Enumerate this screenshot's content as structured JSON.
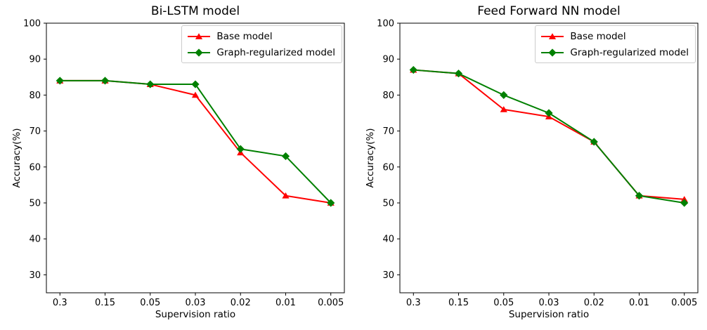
{
  "figure": {
    "background": "#ffffff",
    "spine_color": "#000000",
    "text_color": "#000000"
  },
  "chart_data": [
    {
      "type": "line",
      "title": "Bi-LSTM model",
      "xlabel": "Supervision ratio",
      "ylabel": "Accuracy(%)",
      "categories": [
        "0.3",
        "0.15",
        "0.05",
        "0.03",
        "0.02",
        "0.01",
        "0.005"
      ],
      "yticks": [
        30,
        40,
        50,
        60,
        70,
        80,
        90,
        100
      ],
      "ylim": [
        25,
        100
      ],
      "grid": false,
      "legend_position": "upper right",
      "series": [
        {
          "name": "Base model",
          "color": "#ff0000",
          "marker": "triangle",
          "values": [
            84,
            84,
            83,
            80,
            64,
            52,
            50
          ]
        },
        {
          "name": "Graph-regularized model",
          "color": "#008000",
          "marker": "diamond",
          "values": [
            84,
            84,
            83,
            83,
            65,
            63,
            50
          ]
        }
      ]
    },
    {
      "type": "line",
      "title": "Feed Forward NN model",
      "xlabel": "Supervision ratio",
      "ylabel": "Accuracy(%)",
      "categories": [
        "0.3",
        "0.15",
        "0.05",
        "0.03",
        "0.02",
        "0.01",
        "0.005"
      ],
      "yticks": [
        30,
        40,
        50,
        60,
        70,
        80,
        90,
        100
      ],
      "ylim": [
        25,
        100
      ],
      "grid": false,
      "legend_position": "upper right",
      "series": [
        {
          "name": "Base model",
          "color": "#ff0000",
          "marker": "triangle",
          "values": [
            87,
            86,
            76,
            74,
            67,
            52,
            51
          ]
        },
        {
          "name": "Graph-regularized model",
          "color": "#008000",
          "marker": "diamond",
          "values": [
            87,
            86,
            80,
            75,
            67,
            52,
            50
          ]
        }
      ]
    }
  ]
}
